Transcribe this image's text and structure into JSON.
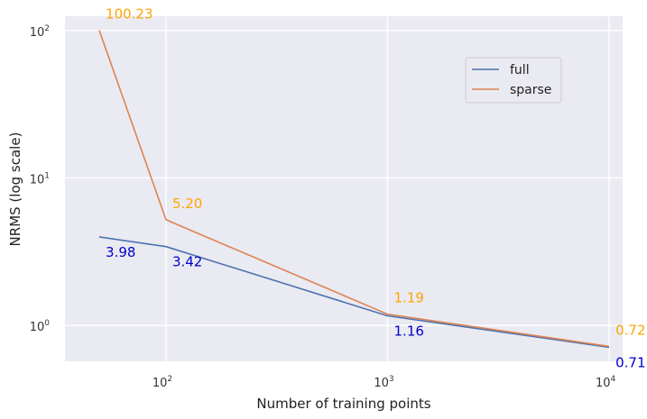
{
  "chart_data": {
    "type": "line",
    "title": "",
    "xlabel": "Number of training points",
    "ylabel": "NRMS (log scale)",
    "xscale": "log",
    "yscale": "log",
    "xlim": [
      35,
      11500
    ],
    "ylim": [
      0.57,
      125
    ],
    "grid": true,
    "legend_position": "upper-right",
    "background": "#eaeaf2",
    "x_ticks": [
      {
        "value": 100,
        "base": "10",
        "exp": "2"
      },
      {
        "value": 1000,
        "base": "10",
        "exp": "3"
      },
      {
        "value": 10000,
        "base": "10",
        "exp": "4"
      }
    ],
    "y_ticks": [
      {
        "value": 1,
        "base": "10",
        "exp": "0"
      },
      {
        "value": 10,
        "base": "10",
        "exp": "1"
      },
      {
        "value": 100,
        "base": "10",
        "exp": "2"
      }
    ],
    "series": [
      {
        "name": "full",
        "color": "#4c72b0",
        "label_color": "#0000cc",
        "x": [
          50,
          100,
          1000,
          10000
        ],
        "y": [
          3.98,
          3.42,
          1.16,
          0.71
        ],
        "labels": [
          "3.98",
          "3.42",
          "1.16",
          "0.71"
        ]
      },
      {
        "name": "sparse",
        "color": "#dd8452",
        "label_color": "#ffa500",
        "x": [
          50,
          100,
          1000,
          10000
        ],
        "y": [
          100.23,
          5.2,
          1.19,
          0.72
        ],
        "labels": [
          "100.23",
          "5.20",
          "1.19",
          "0.72"
        ]
      }
    ]
  }
}
